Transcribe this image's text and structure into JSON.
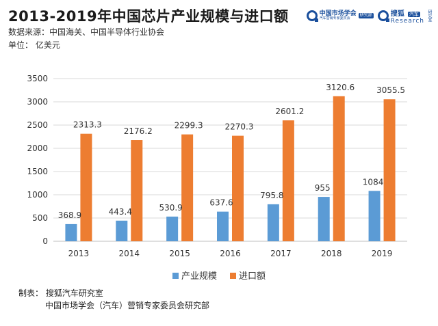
{
  "header": {
    "title": "2013-2019年中国芯片产业规模与进口额",
    "source": "数据来源：中国海关、中国半导体行业协会",
    "unit": "单位：  亿美元"
  },
  "logos": {
    "assoc_name": "中国市场学会",
    "assoc_sub": "汽车营销专家委员会",
    "assoc_badge": "研究部",
    "sohu_name": "搜狐",
    "sohu_badge": "汽车",
    "sohu_sub": "Research",
    "sohu_side": "研究室"
  },
  "footer": {
    "line1": "制表：  搜狐汽车研究室",
    "line2": "中国市场学会（汽车）营销专家委员会研究部"
  },
  "colors": {
    "series1": "#5b9bd5",
    "series2": "#ed7d31",
    "grid": "#d9d9d9",
    "axis": "#bfbfbf"
  },
  "chart_data": {
    "type": "bar",
    "categories": [
      "2013",
      "2014",
      "2015",
      "2016",
      "2017",
      "2018",
      "2019"
    ],
    "series": [
      {
        "name": "产业规模",
        "values": [
          368.9,
          443.4,
          530.9,
          637.6,
          795.8,
          955,
          1084
        ],
        "labels": [
          "368.9",
          "443.4",
          "530.9",
          "637.6",
          "795.8",
          "955",
          "1084"
        ]
      },
      {
        "name": "进口额",
        "values": [
          2313.3,
          2176.2,
          2299.3,
          2270.3,
          2601.2,
          3120.6,
          3055.5
        ],
        "labels": [
          "2313.3",
          "2176.2",
          "2299.3",
          "2270.3",
          "2601.2",
          "3120.6",
          "3055.5"
        ]
      }
    ],
    "ylim": [
      0,
      3500
    ],
    "yticks": [
      "0",
      "500",
      "1000",
      "1500",
      "2000",
      "2500",
      "3000",
      "3500"
    ],
    "ytick_values": [
      0,
      500,
      1000,
      1500,
      2000,
      2500,
      3000,
      3500
    ],
    "grid": true,
    "legend": "bottom-center"
  }
}
